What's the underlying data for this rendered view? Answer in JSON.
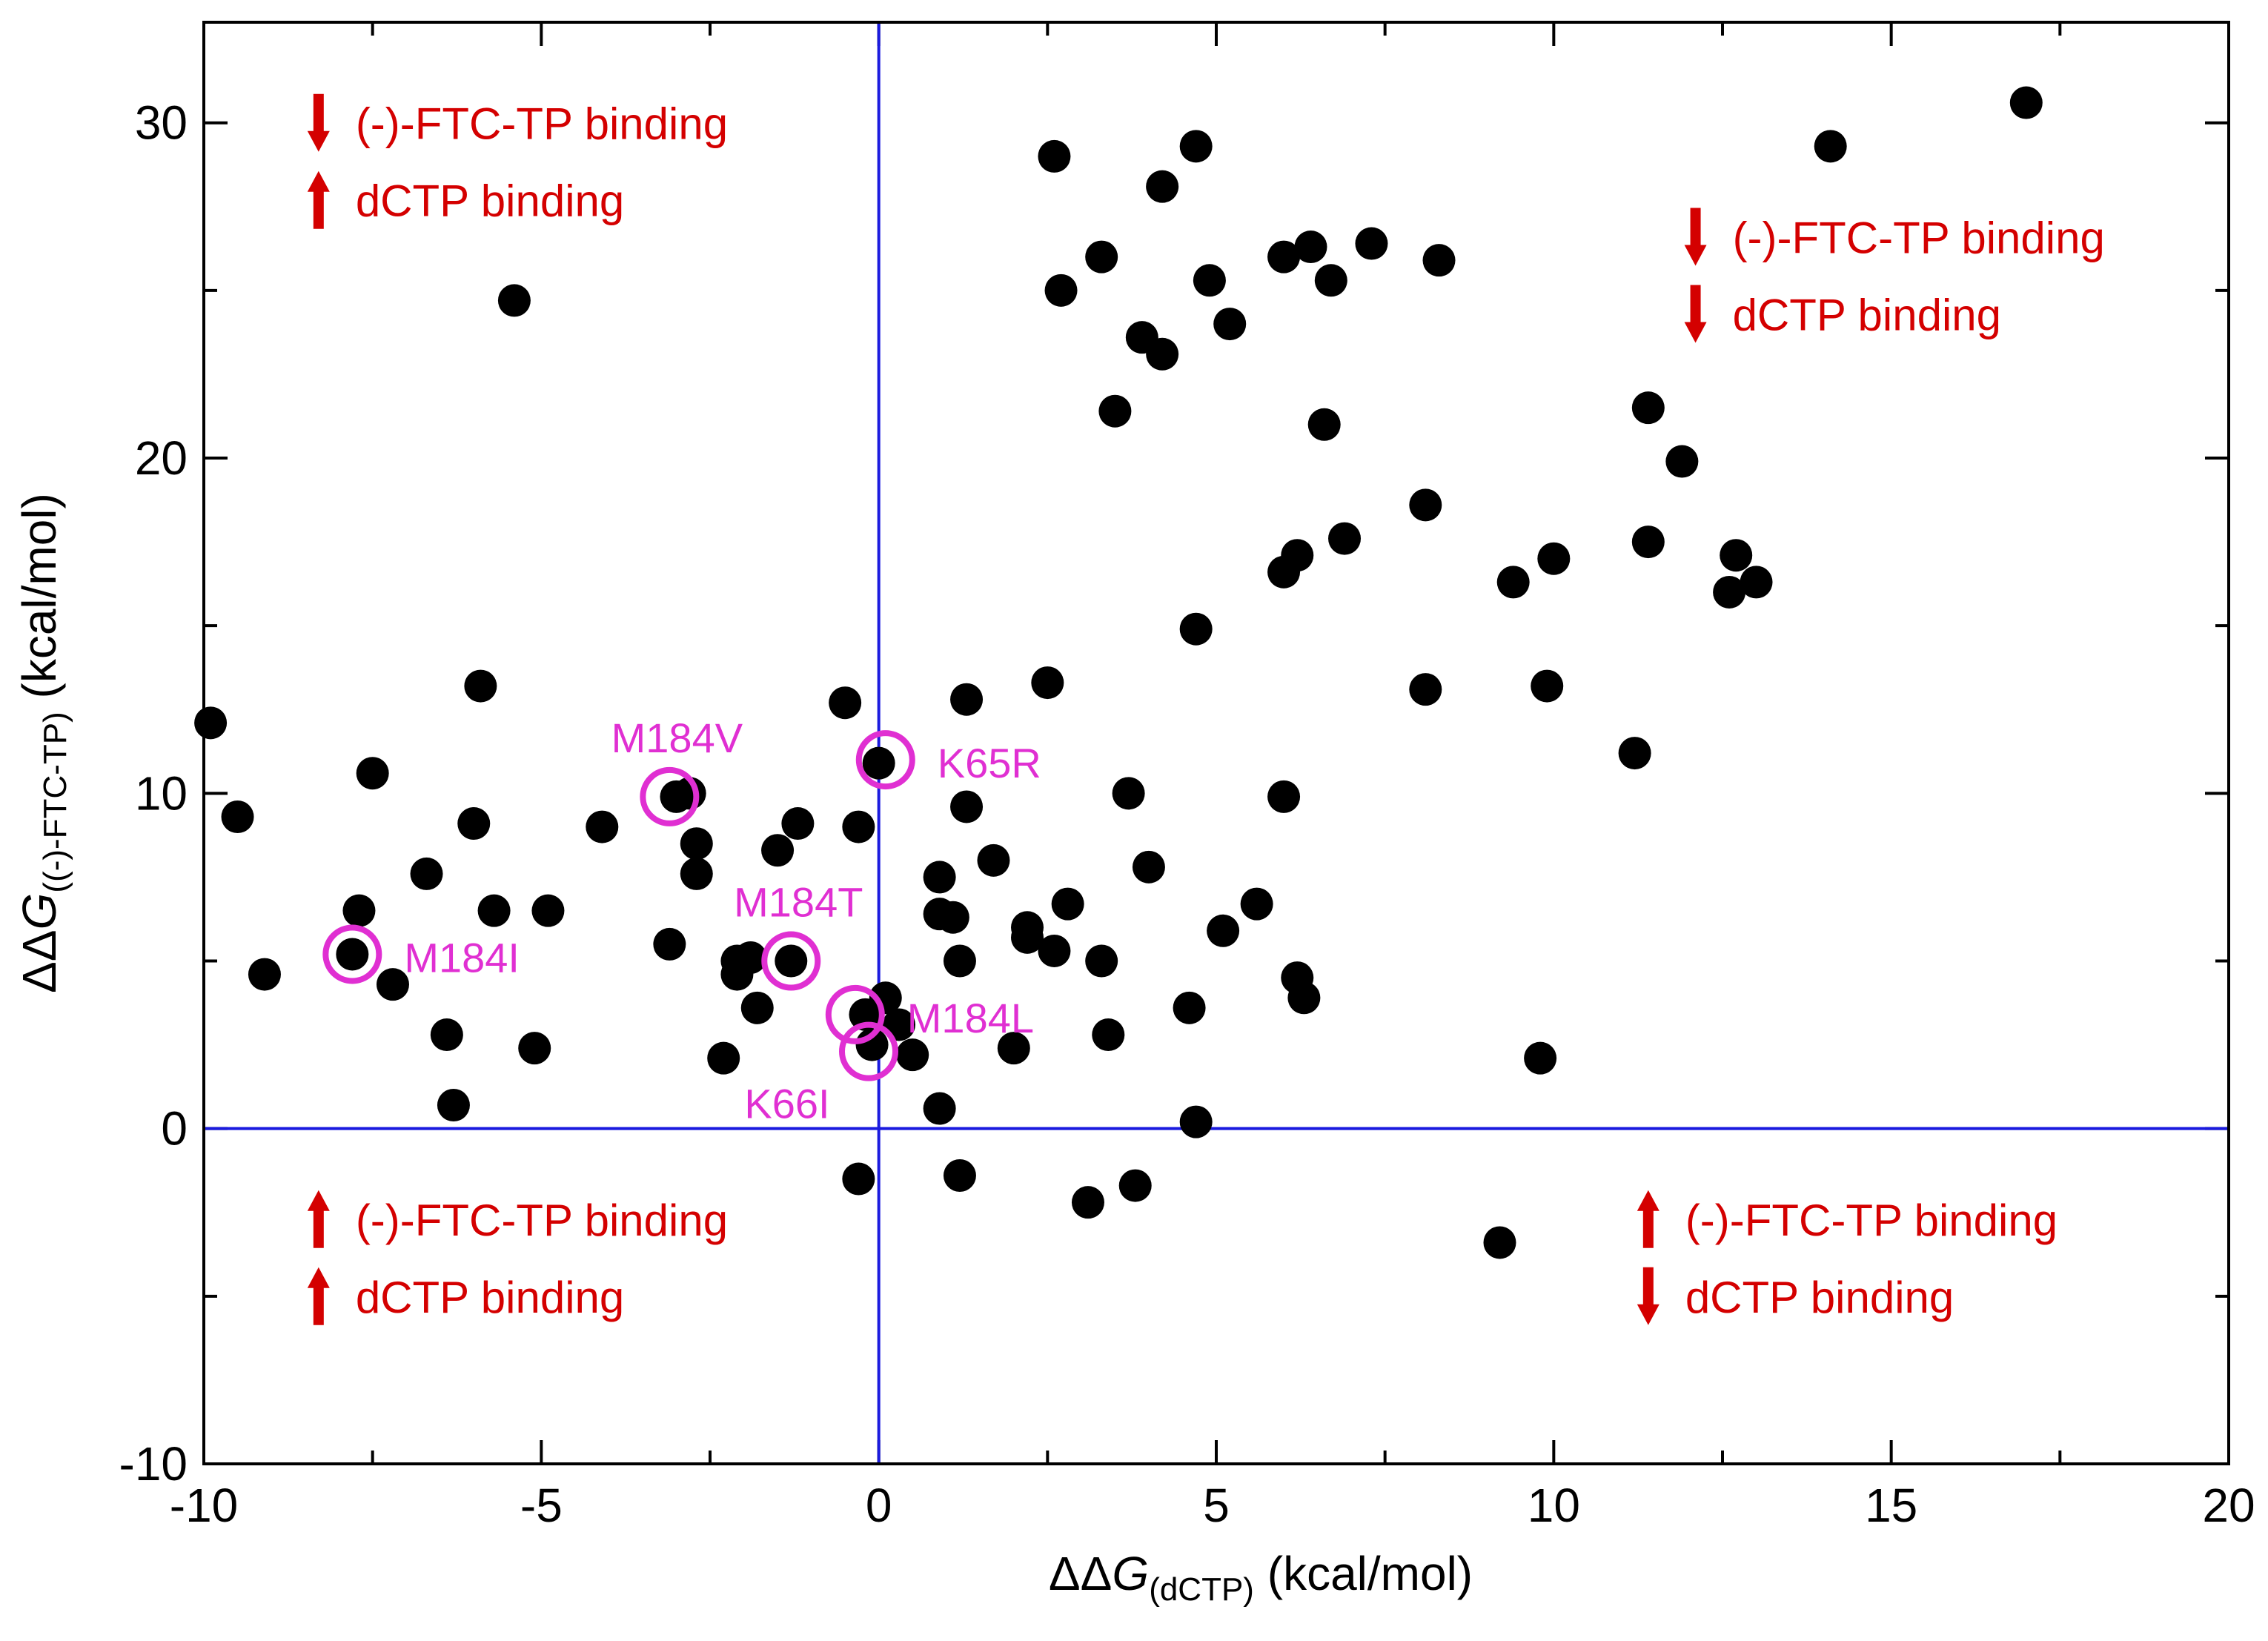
{
  "chart_data": {
    "type": "scatter",
    "xlabel": {
      "prefix": "ΔΔ",
      "var": "G",
      "sub": "(dCTP)",
      "unit": " (kcal/mol)"
    },
    "ylabel": {
      "prefix": "ΔΔ",
      "var": "G",
      "sub": "((-)-FTC-TP)",
      "unit": " (kcal/mol)"
    },
    "xlim": [
      -10,
      20
    ],
    "ylim": [
      -10,
      33
    ],
    "xticks": [
      -10,
      -5,
      0,
      5,
      10,
      15,
      20
    ],
    "yticks": [
      -10,
      0,
      10,
      20,
      30
    ],
    "reference_lines": {
      "x": 0,
      "y": 0,
      "color": "#1a1adf"
    },
    "point_color": "#000000",
    "highlight_color": "#e02fd2",
    "arrow_color": "#d40000",
    "points": [
      [
        -9.9,
        12.1
      ],
      [
        -9.5,
        9.3
      ],
      [
        -9.1,
        4.6
      ],
      [
        -7.8,
        5.2
      ],
      [
        -7.7,
        6.5
      ],
      [
        -7.5,
        10.6
      ],
      [
        -7.2,
        4.3
      ],
      [
        -6.7,
        7.6
      ],
      [
        -6.4,
        2.8
      ],
      [
        -6.3,
        0.7
      ],
      [
        -6.0,
        9.1
      ],
      [
        -5.9,
        13.2
      ],
      [
        -5.7,
        6.5
      ],
      [
        -5.4,
        24.7
      ],
      [
        -5.1,
        2.4
      ],
      [
        -4.9,
        6.5
      ],
      [
        -4.1,
        9.0
      ],
      [
        -3.1,
        5.5
      ],
      [
        -3.0,
        9.9
      ],
      [
        -2.8,
        10.0
      ],
      [
        -2.7,
        8.5
      ],
      [
        -2.7,
        7.6
      ],
      [
        -2.3,
        2.1
      ],
      [
        -2.1,
        5.0
      ],
      [
        -2.1,
        4.6
      ],
      [
        -1.9,
        5.1
      ],
      [
        -1.8,
        3.6
      ],
      [
        -1.5,
        8.3
      ],
      [
        -1.3,
        5.0
      ],
      [
        -1.2,
        9.1
      ],
      [
        -0.5,
        12.7
      ],
      [
        -0.3,
        9.0
      ],
      [
        -0.3,
        -1.5
      ],
      [
        -0.2,
        3.4
      ],
      [
        -0.1,
        2.5
      ],
      [
        0.0,
        10.9
      ],
      [
        0.1,
        3.9
      ],
      [
        0.3,
        3.1
      ],
      [
        0.5,
        2.2
      ],
      [
        0.9,
        0.6
      ],
      [
        0.9,
        6.4
      ],
      [
        0.9,
        7.5
      ],
      [
        1.1,
        6.3
      ],
      [
        1.2,
        5.0
      ],
      [
        1.2,
        -1.4
      ],
      [
        1.3,
        12.8
      ],
      [
        1.3,
        9.6
      ],
      [
        1.7,
        8.0
      ],
      [
        2.0,
        2.4
      ],
      [
        2.2,
        6.0
      ],
      [
        2.2,
        5.7
      ],
      [
        2.5,
        13.3
      ],
      [
        2.6,
        29.0
      ],
      [
        2.6,
        5.3
      ],
      [
        2.7,
        25.0
      ],
      [
        2.8,
        6.7
      ],
      [
        3.1,
        -2.2
      ],
      [
        3.3,
        26.0
      ],
      [
        3.3,
        5.0
      ],
      [
        3.4,
        2.8
      ],
      [
        3.5,
        21.4
      ],
      [
        3.7,
        10.0
      ],
      [
        3.8,
        -1.7
      ],
      [
        3.9,
        23.6
      ],
      [
        4.0,
        7.8
      ],
      [
        4.2,
        28.1
      ],
      [
        4.2,
        23.1
      ],
      [
        4.6,
        3.6
      ],
      [
        4.7,
        29.3
      ],
      [
        4.7,
        14.9
      ],
      [
        4.7,
        0.2
      ],
      [
        4.9,
        25.3
      ],
      [
        5.1,
        5.9
      ],
      [
        5.2,
        24.0
      ],
      [
        5.6,
        6.7
      ],
      [
        6.0,
        26.0
      ],
      [
        6.0,
        16.6
      ],
      [
        6.0,
        9.9
      ],
      [
        6.2,
        17.1
      ],
      [
        6.2,
        4.5
      ],
      [
        6.3,
        3.9
      ],
      [
        6.4,
        26.3
      ],
      [
        6.6,
        21.0
      ],
      [
        6.7,
        25.3
      ],
      [
        6.9,
        17.6
      ],
      [
        7.3,
        26.4
      ],
      [
        8.1,
        18.6
      ],
      [
        8.1,
        13.1
      ],
      [
        8.3,
        25.9
      ],
      [
        9.2,
        -3.4
      ],
      [
        9.4,
        16.3
      ],
      [
        9.8,
        2.1
      ],
      [
        9.9,
        13.2
      ],
      [
        10.0,
        17.0
      ],
      [
        11.2,
        11.2
      ],
      [
        11.4,
        21.5
      ],
      [
        11.4,
        17.5
      ],
      [
        11.9,
        19.9
      ],
      [
        12.6,
        16.0
      ],
      [
        12.7,
        17.1
      ],
      [
        13.0,
        16.3
      ],
      [
        14.1,
        29.3
      ],
      [
        17.0,
        30.6
      ]
    ],
    "highlighted": [
      {
        "label": "M184V",
        "x": -3.1,
        "y": 9.9,
        "label_pos": "above"
      },
      {
        "label": "K65R",
        "x": 0.1,
        "y": 11.0,
        "label_pos": "right"
      },
      {
        "label": "M184T",
        "x": -1.3,
        "y": 5.0,
        "label_pos": "above"
      },
      {
        "label": "M184I",
        "x": -7.8,
        "y": 5.2,
        "label_pos": "right"
      },
      {
        "label": "M184L",
        "x": -0.35,
        "y": 3.4,
        "label_pos": "right"
      },
      {
        "label": "K66I",
        "x": -0.15,
        "y": 2.3,
        "label_pos": "below-left"
      }
    ],
    "quadrant_annotations": [
      {
        "position": "top-left",
        "lines": [
          {
            "arrow": "down",
            "text": "(-)-FTC-TP binding"
          },
          {
            "arrow": "up",
            "text": "dCTP binding"
          }
        ]
      },
      {
        "position": "top-right",
        "lines": [
          {
            "arrow": "down",
            "text": "(-)-FTC-TP binding"
          },
          {
            "arrow": "down",
            "text": "dCTP binding"
          }
        ]
      },
      {
        "position": "bottom-left",
        "lines": [
          {
            "arrow": "up",
            "text": "(-)-FTC-TP binding"
          },
          {
            "arrow": "up",
            "text": "dCTP binding"
          }
        ]
      },
      {
        "position": "bottom-right",
        "lines": [
          {
            "arrow": "up",
            "text": "(-)-FTC-TP binding"
          },
          {
            "arrow": "down",
            "text": "dCTP binding"
          }
        ]
      }
    ]
  }
}
